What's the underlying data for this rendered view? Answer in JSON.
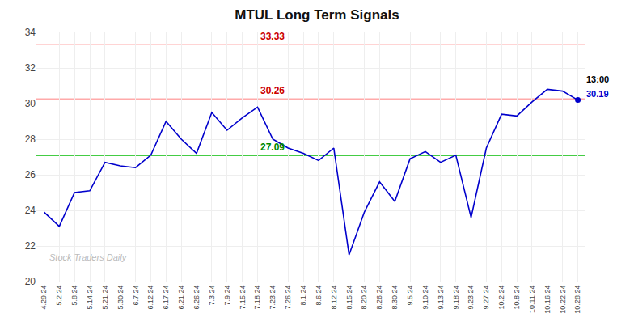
{
  "chart_data": {
    "type": "line",
    "title": "MTUL Long Term Signals",
    "categories": [
      "4.29.24",
      "5.2.24",
      "5.8.24",
      "5.14.24",
      "5.21.24",
      "5.30.24",
      "6.7.24",
      "6.12.24",
      "6.17.24",
      "6.21.24",
      "6.26.24",
      "7.3.24",
      "7.9.24",
      "7.15.24",
      "7.18.24",
      "7.23.24",
      "7.26.24",
      "8.1.24",
      "8.6.24",
      "8.12.24",
      "8.15.24",
      "8.20.24",
      "8.26.24",
      "8.30.24",
      "9.5.24",
      "9.10.24",
      "9.13.24",
      "9.18.24",
      "9.23.24",
      "9.27.24",
      "10.2.24",
      "10.8.24",
      "10.11.24",
      "10.16.24",
      "10.22.24",
      "10.28.24"
    ],
    "values": [
      23.9,
      23.1,
      25.0,
      25.1,
      26.7,
      26.5,
      26.4,
      27.1,
      29.0,
      28.0,
      27.2,
      29.5,
      28.5,
      29.2,
      29.8,
      28.0,
      27.5,
      27.2,
      26.8,
      27.5,
      21.5,
      23.9,
      25.6,
      24.5,
      26.9,
      27.3,
      26.7,
      27.1,
      23.6,
      27.5,
      29.4,
      29.3,
      30.1,
      30.8,
      30.7,
      30.2
    ],
    "color": "#0000cc",
    "marker": "last",
    "ylim": [
      20,
      34
    ],
    "yticks": [
      20,
      22,
      24,
      26,
      28,
      30,
      32,
      34
    ],
    "grid": true,
    "reference_lines": [
      {
        "value": 33.33,
        "label": "33.33",
        "color": "#ffaaaa",
        "label_color": "#cc0000"
      },
      {
        "value": 30.26,
        "label": "30.26",
        "color": "#ffaaaa",
        "label_color": "#cc0000"
      },
      {
        "value": 27.09,
        "label": "27.09",
        "color": "#44cc44",
        "label_color": "#008800"
      }
    ],
    "annotations": [
      {
        "text": "13:00"
      },
      {
        "text": "30.19",
        "value": 30.19,
        "color": "#0000cc"
      }
    ],
    "watermark": "Stock Traders Daily"
  }
}
